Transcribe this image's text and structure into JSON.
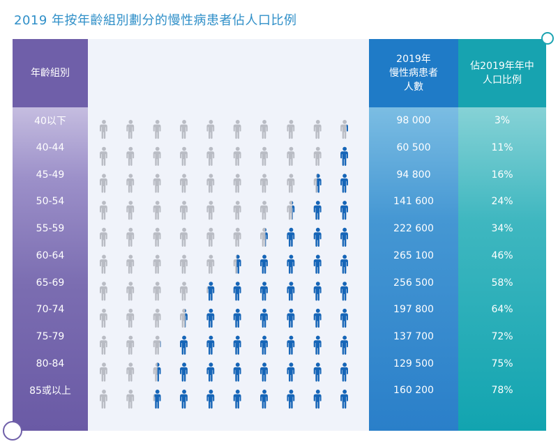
{
  "title": "2019 年按年齡組別劃分的慢性病患者佔人口比例",
  "columns": {
    "age": "年齡組別",
    "patients": "2019年\n慢性病患者\n人數",
    "percent": "佔2019年年中\n人口比例"
  },
  "colors": {
    "title": "#2f8fc8",
    "age_column": "#6f5fa9",
    "patients_column": "#1f7bc7",
    "percent_column": "#17a3b0",
    "icon_filled": "#1565b8",
    "icon_empty": "#b9bcc4"
  },
  "icon_name": "person-icon",
  "chart_data": {
    "type": "table",
    "icons_per_row": 10,
    "rows": [
      {
        "age": "40以下",
        "patients": "98 000",
        "percent": "3%",
        "percent_value": 3
      },
      {
        "age": "40-44",
        "patients": "60 500",
        "percent": "11%",
        "percent_value": 11
      },
      {
        "age": "45-49",
        "patients": "94 800",
        "percent": "16%",
        "percent_value": 16
      },
      {
        "age": "50-54",
        "patients": "141 600",
        "percent": "24%",
        "percent_value": 24
      },
      {
        "age": "55-59",
        "patients": "222 600",
        "percent": "34%",
        "percent_value": 34
      },
      {
        "age": "60-64",
        "patients": "265 100",
        "percent": "46%",
        "percent_value": 46
      },
      {
        "age": "65-69",
        "patients": "256 500",
        "percent": "58%",
        "percent_value": 58
      },
      {
        "age": "70-74",
        "patients": "197 800",
        "percent": "64%",
        "percent_value": 64
      },
      {
        "age": "75-79",
        "patients": "137 700",
        "percent": "72%",
        "percent_value": 72
      },
      {
        "age": "80-84",
        "patients": "129 500",
        "percent": "75%",
        "percent_value": 75
      },
      {
        "age": "85或以上",
        "patients": "160 200",
        "percent": "78%",
        "percent_value": 78
      }
    ]
  }
}
